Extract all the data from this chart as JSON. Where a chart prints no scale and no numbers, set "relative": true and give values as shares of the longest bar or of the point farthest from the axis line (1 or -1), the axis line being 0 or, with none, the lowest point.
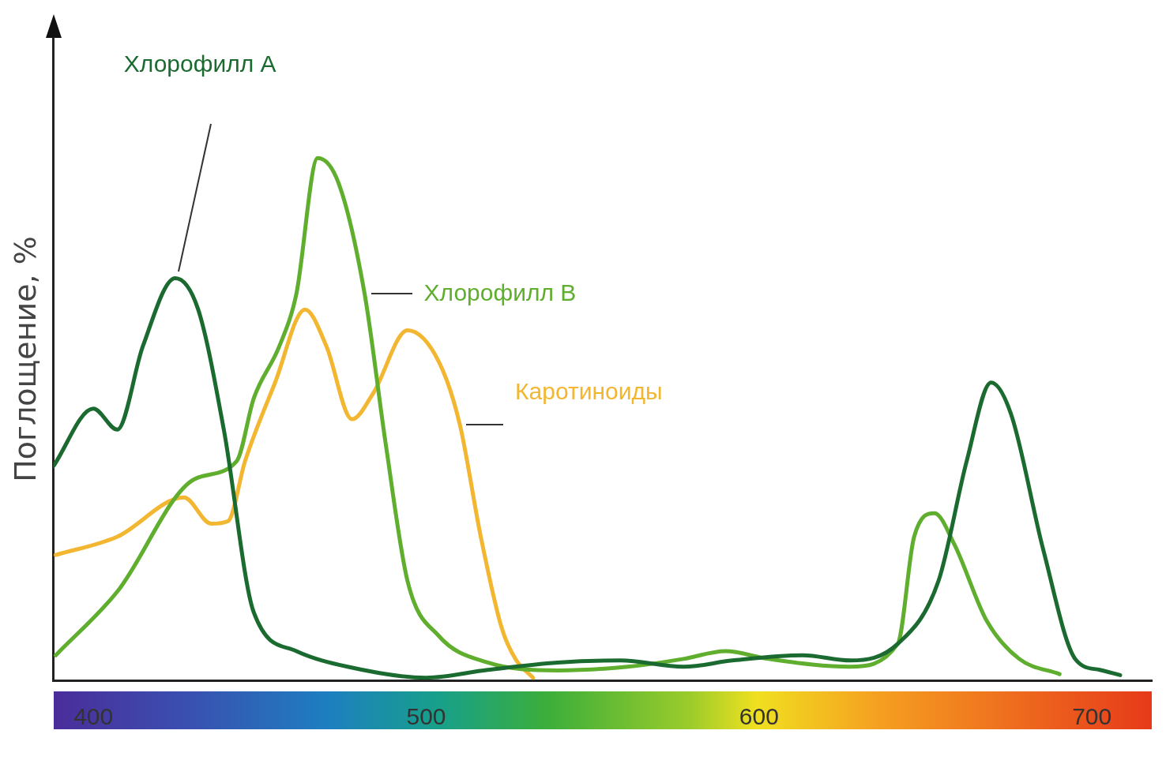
{
  "chart_data": {
    "type": "line",
    "relative": true,
    "ylabel": "Поглощение, %",
    "xlim": [
      388,
      718
    ],
    "xticks": [
      400,
      500,
      600,
      700
    ],
    "grid": false,
    "legend": false,
    "marker": "none",
    "line_style": "solid",
    "series": [
      {
        "name": "Хлорофилл А",
        "color": "#1b6b30",
        "x": [
          388,
          400,
          407.2,
          414.9,
          424.6,
          431.5,
          439.2,
          448.2,
          461,
          476.4,
          500,
          518.5,
          539.5,
          558.4,
          577.3,
          592,
          613,
          627.5,
          641.7,
          653.9,
          662.4,
          669.7,
          675.7,
          685.4,
          695.1,
          702.4,
          708.5
        ],
        "values": [
          0.41,
          0.52,
          0.48,
          0.64,
          0.77,
          0.71,
          0.48,
          0.13,
          0.056,
          0.026,
          0.005,
          0.02,
          0.034,
          0.038,
          0.026,
          0.038,
          0.048,
          0.038,
          0.07,
          0.19,
          0.42,
          0.57,
          0.51,
          0.25,
          0.04,
          0.02,
          0.01
        ]
      },
      {
        "name": "Хлорофилл В",
        "color": "#5fae2e",
        "x": [
          388.7,
          407.2,
          430.3,
          443.1,
          448.2,
          455.9,
          461,
          467.4,
          473.8,
          481.5,
          487.9,
          494.4,
          503.8,
          518.5,
          539.5,
          560.5,
          577.3,
          589.9,
          602.9,
          627.2,
          641.7,
          646.6,
          652.7,
          658.7,
          668.4,
          678.2,
          690.3
        ],
        "values": [
          0.048,
          0.17,
          0.385,
          0.42,
          0.54,
          0.64,
          0.74,
          1,
          0.95,
          0.74,
          0.45,
          0.19,
          0.085,
          0.034,
          0.019,
          0.026,
          0.041,
          0.056,
          0.041,
          0.026,
          0.07,
          0.275,
          0.32,
          0.26,
          0.114,
          0.041,
          0.012
        ]
      },
      {
        "name": "Каротиноиды",
        "color": "#f2b630",
        "x": [
          388.7,
          407.2,
          427.2,
          435.4,
          440.5,
          445.6,
          454.6,
          463.6,
          470,
          477.7,
          484.1,
          494.4,
          503.8,
          510.1,
          516.4,
          522.7,
          526.9,
          532.1
        ],
        "values": [
          0.24,
          0.275,
          0.35,
          0.3,
          0.305,
          0.42,
          0.57,
          0.71,
          0.64,
          0.5,
          0.55,
          0.67,
          0.61,
          0.49,
          0.275,
          0.1,
          0.04,
          0.005
        ]
      }
    ]
  }
}
